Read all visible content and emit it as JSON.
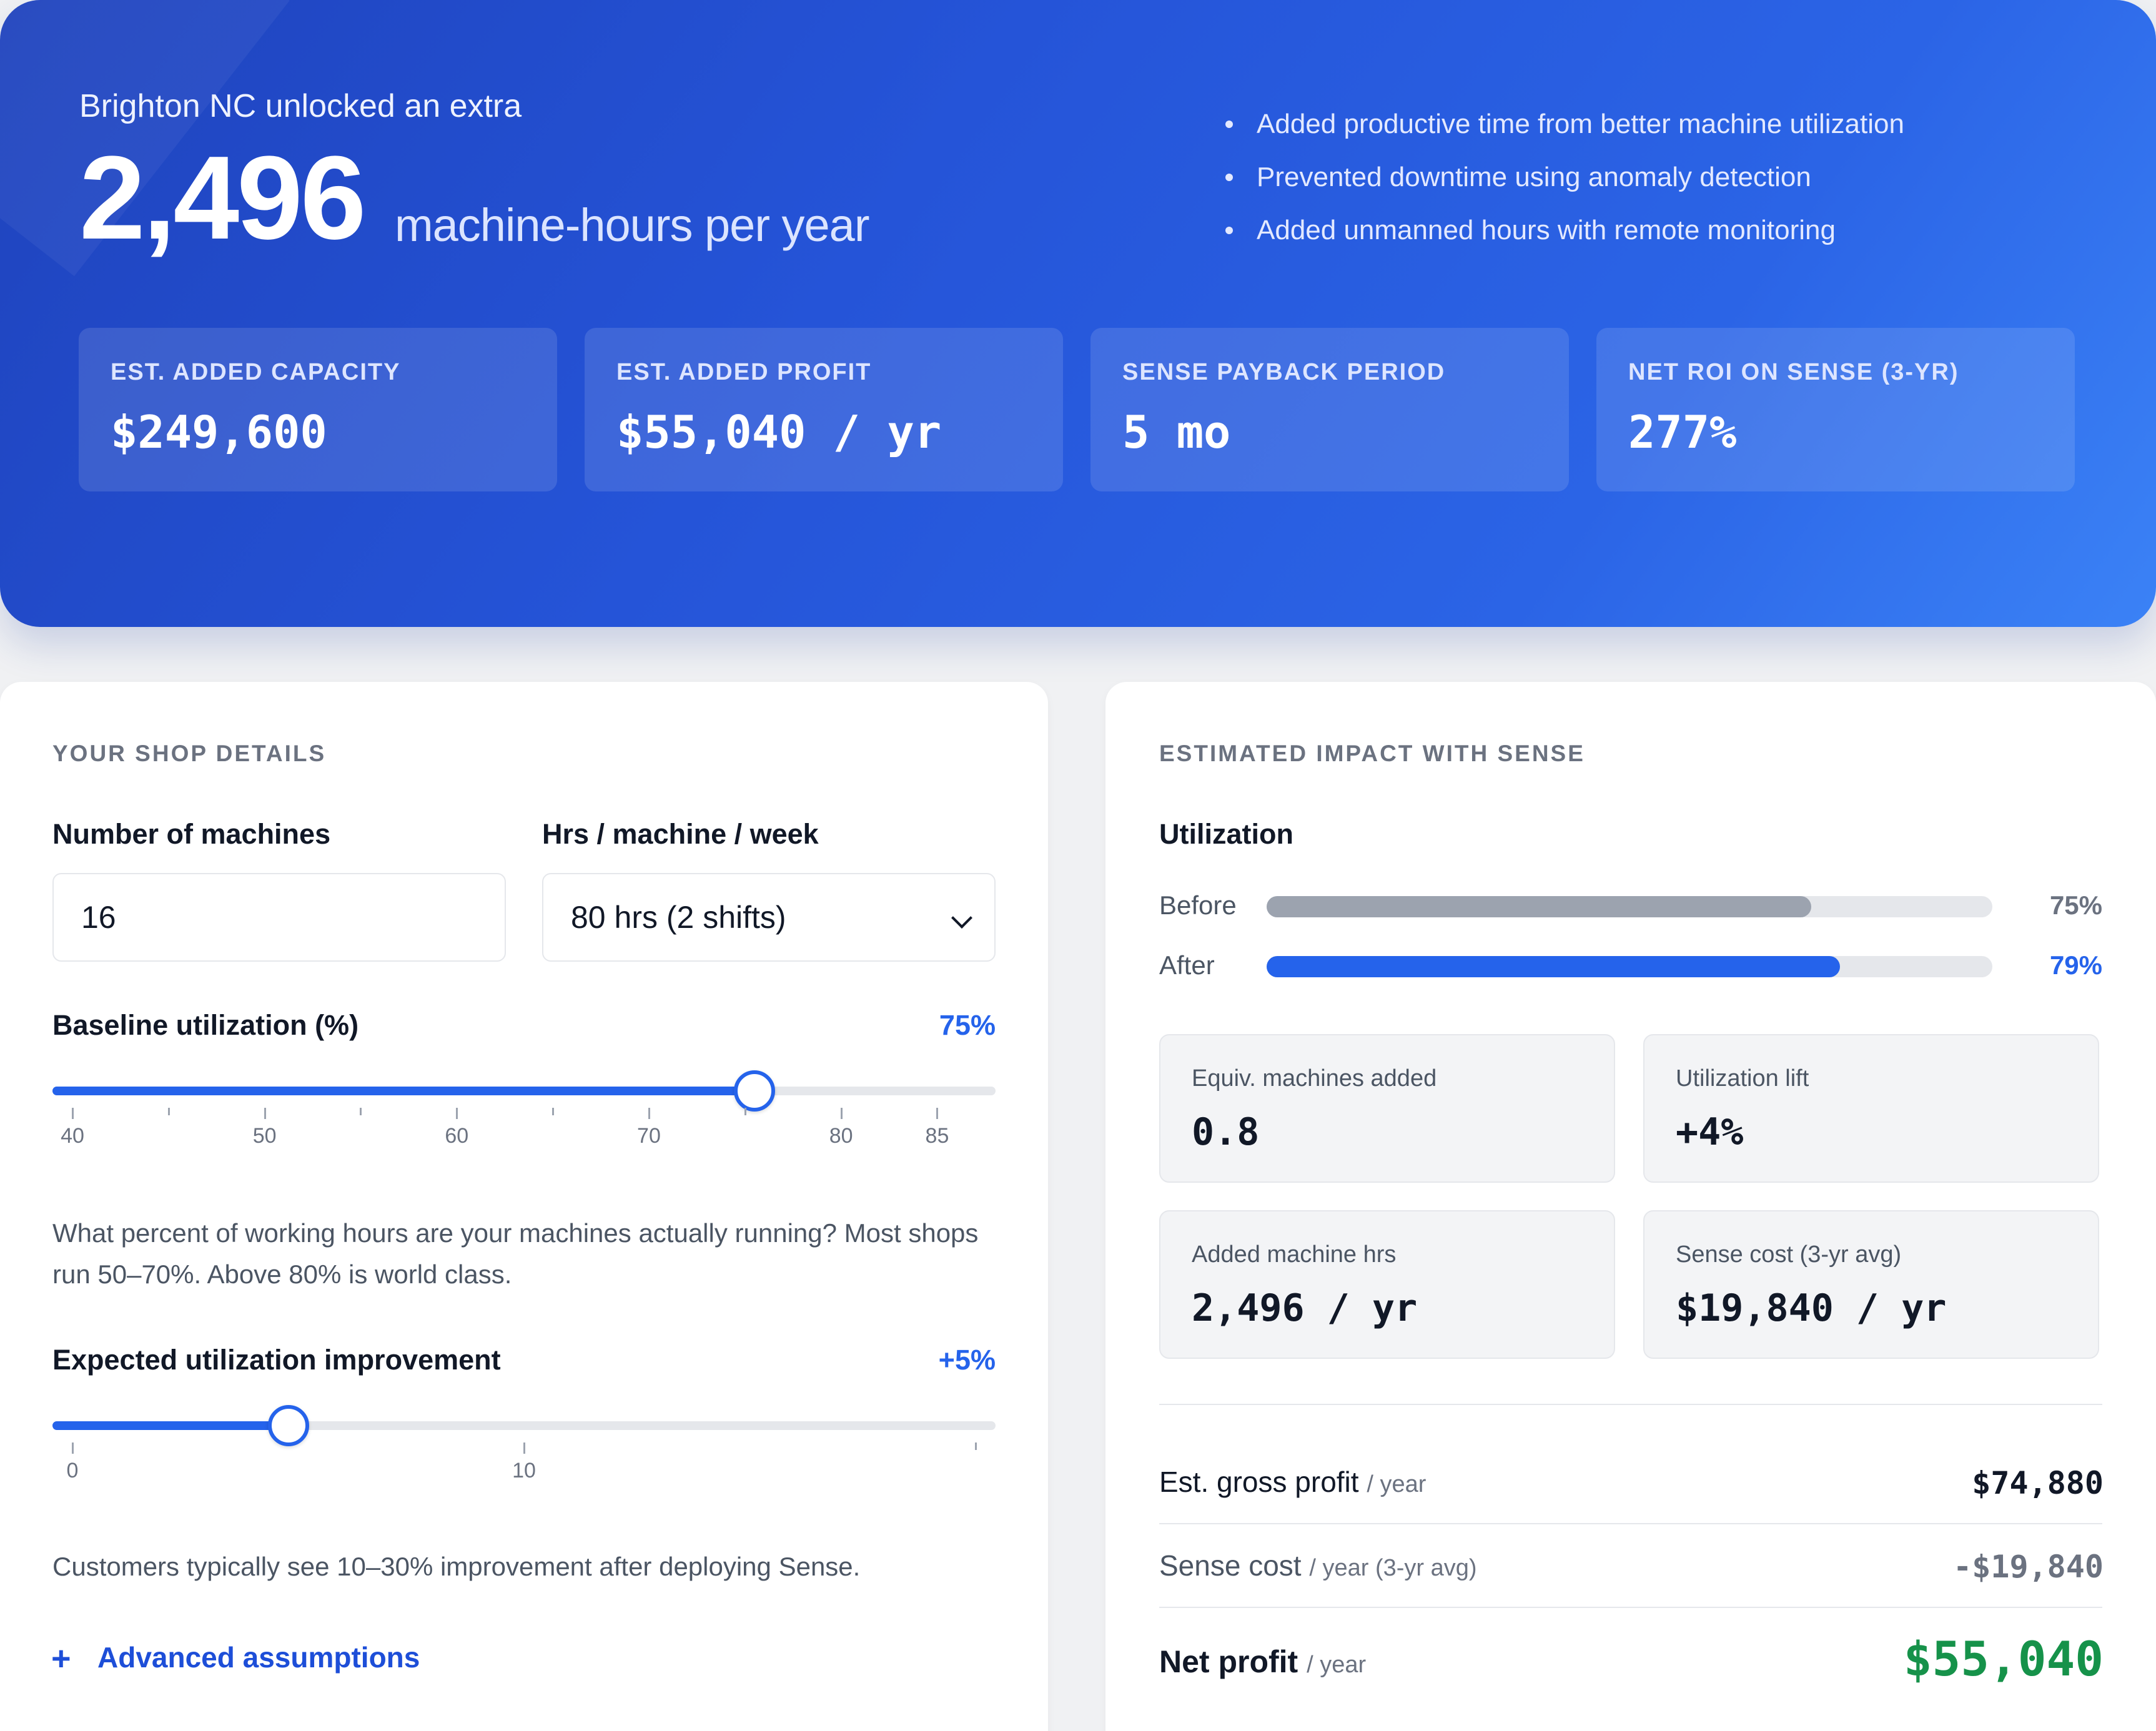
{
  "hero": {
    "kicker": "Brighton NC unlocked an extra",
    "big_number": "2,496",
    "unit": "machine-hours per year",
    "bullets": [
      "Added productive time from better machine utilization",
      "Prevented downtime using anomaly detection",
      "Added unmanned hours with remote monitoring"
    ],
    "stats": [
      {
        "label": "EST. ADDED CAPACITY",
        "value": "$249,600"
      },
      {
        "label": "EST. ADDED PROFIT",
        "value": "$55,040 / yr"
      },
      {
        "label": "SENSE PAYBACK PERIOD",
        "value": "5 mo"
      },
      {
        "label": "NET ROI ON SENSE (3-YR)",
        "value": "277%"
      }
    ]
  },
  "shop": {
    "title": "YOUR SHOP DETAILS",
    "machines_label": "Number of machines",
    "machines_value": "16",
    "hours_label": "Hrs / machine / week",
    "hours_value": "80 hrs (2 shifts)",
    "baseline": {
      "label": "Baseline utilization (%)",
      "value_text": "75%",
      "value": 75,
      "min": 40,
      "max": 87,
      "ticks": [
        "40",
        "50",
        "60",
        "70",
        "80",
        "85"
      ],
      "help": "What percent of working hours are your machines actually running? Most shops run 50–70%. Above 80% is world class."
    },
    "improvement": {
      "label": "Expected utilization improvement",
      "value_text": "+5%",
      "value": 5,
      "min": 0,
      "max": 20,
      "ticks": [
        "0",
        "10"
      ],
      "help": "Customers typically see 10–30% improvement after deploying Sense."
    },
    "advanced_plus": "+",
    "advanced_label": "Advanced assumptions"
  },
  "impact": {
    "title": "ESTIMATED IMPACT WITH SENSE",
    "utilization_title": "Utilization",
    "before_label": "Before",
    "before_pct": "75%",
    "before_value": 75,
    "after_label": "After",
    "after_pct": "79%",
    "after_value": 79,
    "cards": [
      {
        "label": "Equiv. machines added",
        "value": "0.8"
      },
      {
        "label": "Utilization lift",
        "value": "+4%"
      },
      {
        "label": "Added machine hrs",
        "value": "2,496 / yr"
      },
      {
        "label": "Sense cost (3-yr avg)",
        "value": "$19,840 / yr"
      }
    ],
    "rows": [
      {
        "label": "Est. gross profit",
        "sub": "/ year",
        "value": "$74,880"
      },
      {
        "label": "Sense cost",
        "sub": "/ year (3-yr avg)",
        "value": "-$19,840"
      },
      {
        "label": "Net profit",
        "sub": "/ year",
        "value": "$55,040"
      }
    ],
    "colors": {
      "accent": "#2563eb",
      "positive": "#16924a",
      "before_bar": "#9ca3af",
      "muted": "#6b7280"
    }
  }
}
